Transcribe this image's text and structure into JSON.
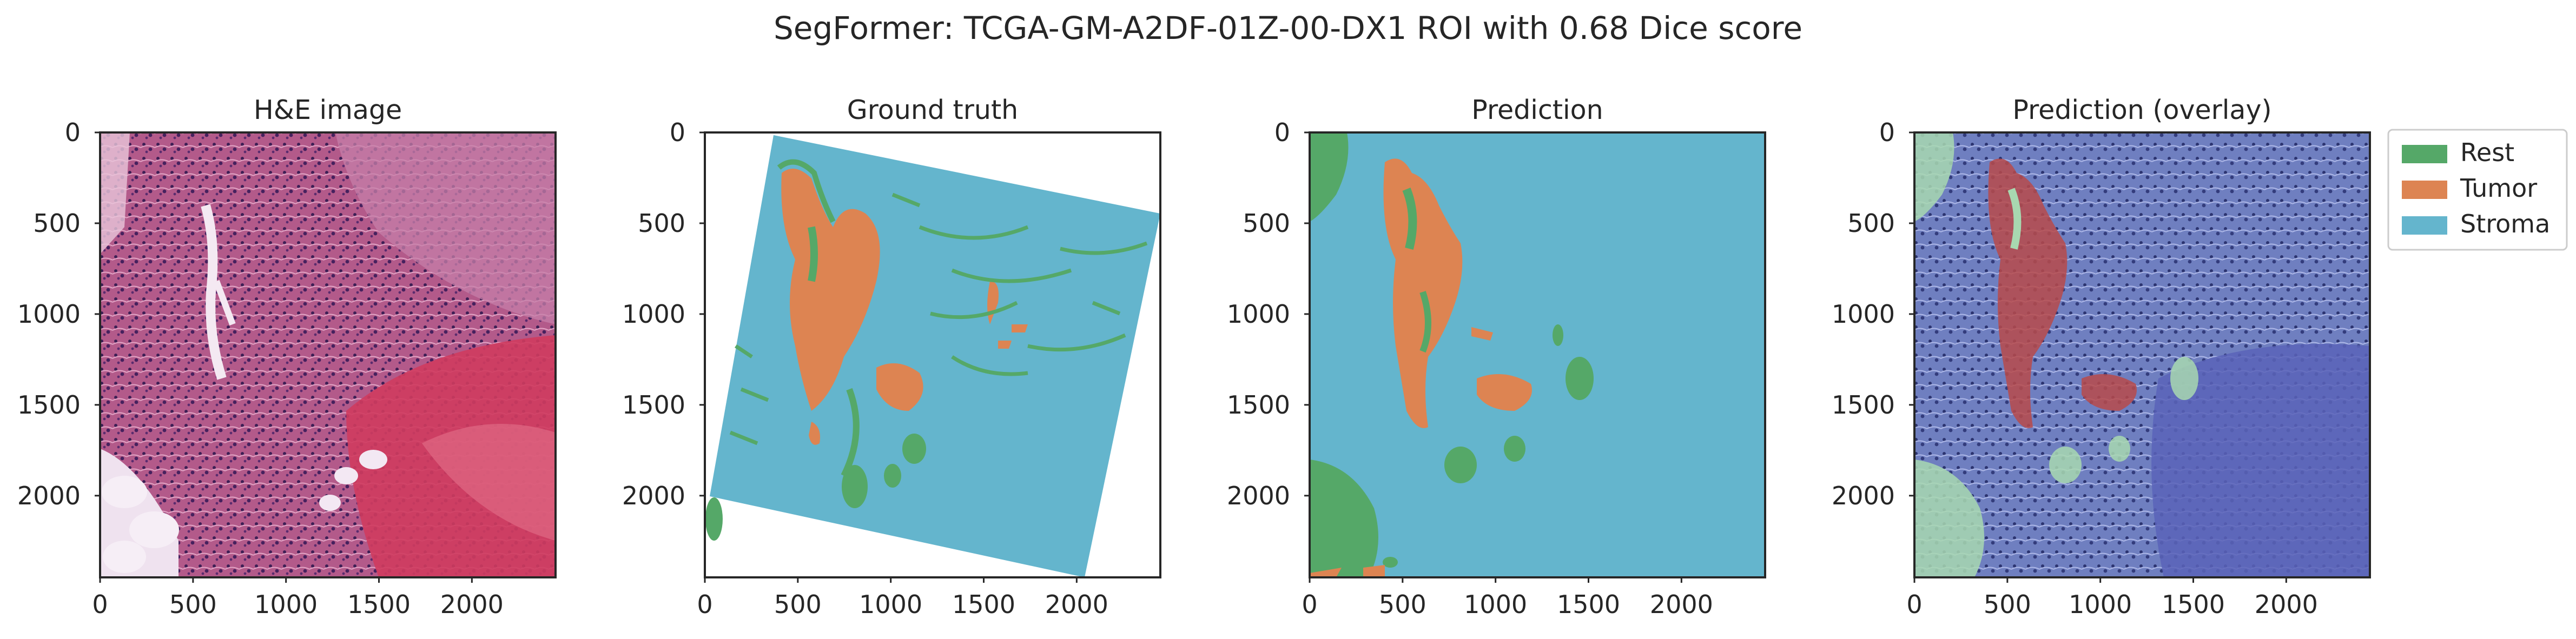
{
  "figure": {
    "title": "SegFormer: TCGA-GM-A2DF-01Z-00-DX1 ROI with 0.68 Dice score"
  },
  "panels": [
    {
      "id": "he",
      "title": "H&E image"
    },
    {
      "id": "gt",
      "title": "Ground truth"
    },
    {
      "id": "pred",
      "title": "Prediction"
    },
    {
      "id": "overlay",
      "title": "Prediction (overlay)"
    }
  ],
  "axes": {
    "x_ticks": [
      "0",
      "500",
      "1000",
      "1500",
      "2000"
    ],
    "y_ticks": [
      "0",
      "500",
      "1000",
      "1500",
      "2000"
    ],
    "x_tick_values": [
      0,
      500,
      1000,
      1500,
      2000
    ],
    "y_tick_values": [
      0,
      500,
      1000,
      1500,
      2000
    ],
    "range": [
      0,
      2450
    ]
  },
  "legend": {
    "placement": "upper-right, outside last panel",
    "entries": [
      {
        "label": "Rest",
        "color": "#55a868"
      },
      {
        "label": "Tumor",
        "color": "#dd8452"
      },
      {
        "label": "Stroma",
        "color": "#64b5cd"
      }
    ]
  },
  "colors": {
    "rest": "#55a868",
    "tumor": "#dd8452",
    "stroma": "#64b5cd",
    "overlay_base": "#7a86c4",
    "overlay_tumor": "#b84a4a",
    "overlay_rest": "#a8d8b0"
  }
}
